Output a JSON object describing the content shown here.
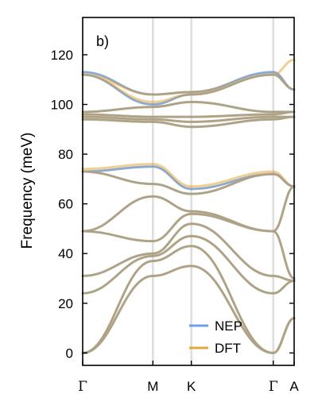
{
  "chart_data": {
    "type": "line",
    "panel_label": "b)",
    "ylabel": "Frequency (meV)",
    "ylim": [
      -5,
      135
    ],
    "yticks": [
      0,
      20,
      40,
      60,
      80,
      100,
      120
    ],
    "xlim": [
      0,
      2.53
    ],
    "high_symmetry_points": [
      {
        "label": "Γ",
        "x": 0.0
      },
      {
        "label": "M",
        "x": 0.84
      },
      {
        "label": "K",
        "x": 1.3
      },
      {
        "label": "Γ",
        "x": 2.28
      },
      {
        "label": "A",
        "x": 2.53
      }
    ],
    "legend_position": "lower-center",
    "grid": false,
    "series": [
      {
        "name": "NEP",
        "color": "#6f9fe8",
        "bands": [
          {
            "x": [
              0,
              0.84,
              1.3,
              2.28,
              2.53
            ],
            "y": [
              0,
              31,
              35,
              0,
              14
            ]
          },
          {
            "x": [
              0,
              0.84,
              1.3,
              2.28,
              2.53
            ],
            "y": [
              0,
              37,
              43,
              0,
              14
            ]
          },
          {
            "x": [
              0,
              0.84,
              1.3,
              2.28,
              2.53
            ],
            "y": [
              24,
              39,
              47,
              24,
              29
            ]
          },
          {
            "x": [
              0,
              0.84,
              1.3,
              2.28,
              2.53
            ],
            "y": [
              31,
              40,
              52,
              31,
              29
            ]
          },
          {
            "x": [
              0,
              0.84,
              1.3,
              2.28,
              2.53
            ],
            "y": [
              49,
              45,
              56,
              49,
              30
            ]
          },
          {
            "x": [
              0,
              0.84,
              1.3,
              2.28,
              2.53
            ],
            "y": [
              49,
              63,
              57,
              49,
              67
            ]
          },
          {
            "x": [
              0,
              0.84,
              1.3,
              2.28,
              2.53
            ],
            "y": [
              73,
              68,
              64,
              72,
              67
            ]
          },
          {
            "x": [
              0,
              0.84,
              1.3,
              2.28,
              2.53
            ],
            "y": [
              73,
              75,
              66,
              72,
              67
            ]
          },
          {
            "x": [
              0,
              0.84,
              1.3,
              2.28,
              2.53
            ],
            "y": [
              94,
              93,
              91,
              94,
              95
            ]
          },
          {
            "x": [
              0,
              0.84,
              1.3,
              2.28,
              2.53
            ],
            "y": [
              95,
              94,
              93,
              95,
              95
            ]
          },
          {
            "x": [
              0,
              0.84,
              1.3,
              2.28,
              2.53
            ],
            "y": [
              96,
              95,
              95,
              96,
              97
            ]
          },
          {
            "x": [
              0,
              0.84,
              1.3,
              2.28,
              2.53
            ],
            "y": [
              97,
              99,
              101,
              97,
              97
            ]
          },
          {
            "x": [
              0,
              0.84,
              1.3,
              2.28,
              2.53
            ],
            "y": [
              112,
              100,
              104,
              112,
              106
            ]
          },
          {
            "x": [
              0,
              0.84,
              1.3,
              2.28,
              2.53
            ],
            "y": [
              113,
              104,
              105,
              113,
              106
            ]
          }
        ]
      },
      {
        "name": "DFT",
        "color": "#e3a93c",
        "bands": [
          {
            "x": [
              0,
              0.84,
              1.3,
              2.28,
              2.53
            ],
            "y": [
              0,
              31,
              35,
              0,
              14
            ]
          },
          {
            "x": [
              0,
              0.84,
              1.3,
              2.28,
              2.53
            ],
            "y": [
              0,
              37,
              43,
              0,
              14
            ]
          },
          {
            "x": [
              0,
              0.84,
              1.3,
              2.28,
              2.53
            ],
            "y": [
              24,
              39,
              47,
              24,
              29
            ]
          },
          {
            "x": [
              0,
              0.84,
              1.3,
              2.28,
              2.53
            ],
            "y": [
              31,
              40,
              52,
              31,
              29
            ]
          },
          {
            "x": [
              0,
              0.84,
              1.3,
              2.28,
              2.53
            ],
            "y": [
              49,
              45,
              56,
              49,
              30
            ]
          },
          {
            "x": [
              0,
              0.84,
              1.3,
              2.28,
              2.53
            ],
            "y": [
              49,
              63,
              57,
              49,
              67
            ]
          },
          {
            "x": [
              0,
              0.84,
              1.3,
              2.28,
              2.53
            ],
            "y": [
              73,
              68,
              64,
              72,
              67
            ]
          },
          {
            "x": [
              0,
              0.84,
              1.3,
              2.28,
              2.53
            ],
            "y": [
              74,
              76,
              67,
              73,
              67
            ]
          },
          {
            "x": [
              0,
              0.84,
              1.3,
              2.28,
              2.53
            ],
            "y": [
              94,
              93,
              91,
              94,
              95
            ]
          },
          {
            "x": [
              0,
              0.84,
              1.3,
              2.28,
              2.53
            ],
            "y": [
              95,
              94,
              93,
              95,
              95
            ]
          },
          {
            "x": [
              0,
              0.84,
              1.3,
              2.28,
              2.53
            ],
            "y": [
              96,
              95,
              95,
              96,
              97
            ]
          },
          {
            "x": [
              0,
              0.84,
              1.3,
              2.28,
              2.53
            ],
            "y": [
              97,
              99,
              101,
              97,
              97
            ]
          },
          {
            "x": [
              0,
              0.84,
              1.3,
              2.28,
              2.53
            ],
            "y": [
              112,
              101,
              104,
              112,
              106
            ]
          },
          {
            "x": [
              0,
              0.84,
              1.3,
              2.28,
              2.53
            ],
            "y": [
              112,
              104,
              105,
              112,
              118
            ]
          }
        ]
      }
    ]
  }
}
